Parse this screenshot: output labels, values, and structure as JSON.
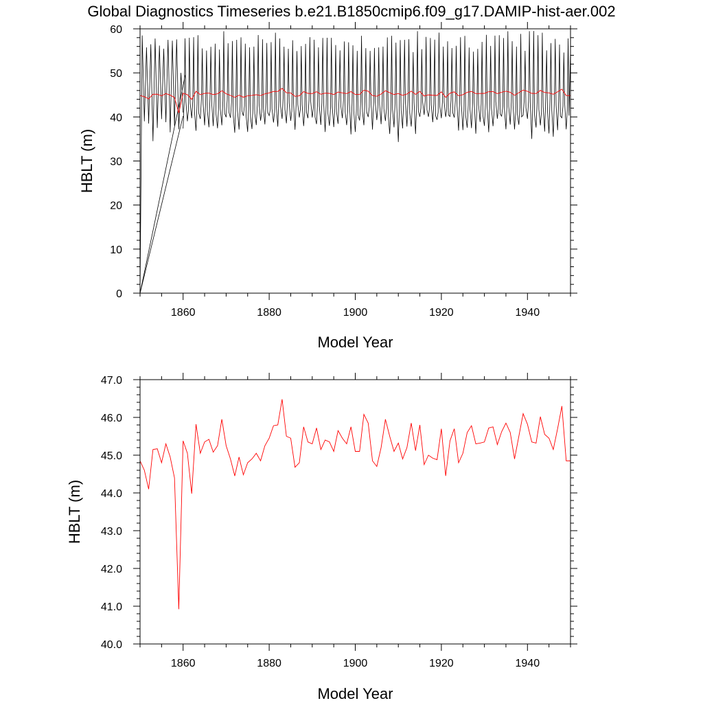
{
  "figure": {
    "title": "Global Diagnostics Timeseries b.e21.B1850cmip6.f09_g17.DAMIP-hist-aer.002"
  },
  "colors": {
    "monthly": "#000000",
    "annual": "#ff0000",
    "frame": "#000000"
  },
  "chart_data": [
    {
      "type": "line",
      "title": "",
      "xlabel": "Model Year",
      "ylabel": "HBLT (m)",
      "xlim": [
        1850,
        1950
      ],
      "ylim": [
        0,
        60
      ],
      "xticks": [
        1860,
        1880,
        1900,
        1920,
        1940
      ],
      "yticks": [
        0,
        10,
        20,
        30,
        40,
        50,
        60
      ],
      "ytick_labels": [
        "0",
        "10",
        "20",
        "30",
        "40",
        "50",
        "60"
      ],
      "grid": false,
      "series": [
        {
          "values_description": "monthly seasonal cycle",
          "color": "#000000",
          "segments": [
            {
              "x": [
                1850.0,
                1850.5,
                1851.0,
                1851.5,
                1852.0,
                1852.5,
                1853.0,
                1853.5,
                1854.0,
                1854.5,
                1855.0,
                1855.5,
                1856.0,
                1856.5,
                1857.0,
                1857.5,
                1858.0,
                1858.5,
                1859.0,
                1859.5,
                1860.0
              ],
              "y": [
                0,
                58.5,
                39.0,
                55.8,
                38.5,
                56.5,
                34.5,
                57.8,
                37.5,
                56.2,
                39.5,
                55.5,
                38.8,
                57.5,
                36.5,
                57.3,
                38.0,
                57.6,
                37.2,
                50.0,
                41.0
              ]
            },
            {
              "x": [
                1850.0,
                1860.0
              ],
              "y": [
                0,
                40.2
              ]
            },
            {
              "x": [
                1850.0,
                1860.5
              ],
              "y": [
                0,
                49.5
              ]
            }
          ],
          "cycle": {
            "x_start": 1860.0,
            "x_end": 1949.5,
            "period_years": 1,
            "seasonal_max_range": [
              54.5,
              59.6
            ],
            "seasonal_min_range": [
              34.5,
              40.5
            ],
            "end_value": 55.0
          }
        },
        {
          "values_description": "annual mean",
          "color": "#ff0000",
          "same_values_as": "panel 2 series 1"
        }
      ]
    },
    {
      "type": "line",
      "title": "",
      "xlabel": "Model Year",
      "ylabel": "HBLT (m)",
      "xlim": [
        1850,
        1950
      ],
      "ylim": [
        40,
        47
      ],
      "xticks": [
        1860,
        1880,
        1900,
        1920,
        1940
      ],
      "yticks": [
        40,
        41,
        42,
        43,
        44,
        45,
        46,
        47
      ],
      "ytick_labels": [
        "40.0",
        "41.0",
        "42.0",
        "43.0",
        "44.0",
        "45.0",
        "46.0",
        "47.0"
      ],
      "grid": false,
      "series": [
        {
          "color": "#ff0000",
          "x": [
            1850,
            1851,
            1852,
            1853,
            1854,
            1855,
            1856,
            1857,
            1858,
            1859,
            1860,
            1861,
            1862,
            1863,
            1864,
            1865,
            1866,
            1867,
            1868,
            1869,
            1870,
            1871,
            1872,
            1873,
            1874,
            1875,
            1876,
            1877,
            1878,
            1879,
            1880,
            1881,
            1882,
            1883,
            1884,
            1885,
            1886,
            1887,
            1888,
            1889,
            1890,
            1891,
            1892,
            1893,
            1894,
            1895,
            1896,
            1897,
            1898,
            1899,
            1900,
            1901,
            1902,
            1903,
            1904,
            1905,
            1906,
            1907,
            1908,
            1909,
            1910,
            1911,
            1912,
            1913,
            1914,
            1915,
            1916,
            1917,
            1918,
            1919,
            1920,
            1921,
            1922,
            1923,
            1924,
            1925,
            1926,
            1927,
            1928,
            1929,
            1930,
            1931,
            1932,
            1933,
            1934,
            1935,
            1936,
            1937,
            1938,
            1939,
            1940,
            1941,
            1942,
            1943,
            1944,
            1945,
            1946,
            1947,
            1948,
            1949,
            1950
          ],
          "y": [
            44.85,
            44.6,
            44.1,
            45.15,
            45.17,
            44.8,
            45.3,
            44.95,
            44.4,
            40.92,
            45.38,
            45.05,
            43.98,
            45.82,
            45.05,
            45.35,
            45.42,
            45.08,
            45.25,
            45.95,
            45.25,
            44.9,
            44.45,
            44.95,
            44.48,
            44.8,
            44.9,
            45.05,
            44.85,
            45.25,
            45.45,
            45.78,
            45.8,
            46.48,
            45.5,
            45.45,
            44.68,
            44.8,
            45.75,
            45.35,
            45.3,
            45.72,
            45.15,
            45.4,
            45.35,
            45.1,
            45.65,
            45.45,
            45.3,
            45.75,
            45.1,
            45.1,
            46.08,
            45.85,
            44.85,
            44.7,
            45.2,
            45.95,
            45.5,
            45.1,
            45.32,
            44.9,
            45.2,
            45.85,
            45.12,
            45.8,
            44.75,
            45.0,
            44.92,
            44.88,
            45.7,
            44.45,
            45.38,
            45.7,
            44.8,
            45.05,
            45.6,
            45.78,
            45.3,
            45.32,
            45.35,
            45.72,
            45.75,
            45.28,
            45.62,
            45.85,
            45.6,
            44.9,
            45.5,
            46.1,
            45.82,
            45.35,
            45.32,
            46.02,
            45.55,
            45.45,
            45.15,
            45.7,
            46.3,
            44.85,
            44.85
          ]
        }
      ]
    }
  ]
}
